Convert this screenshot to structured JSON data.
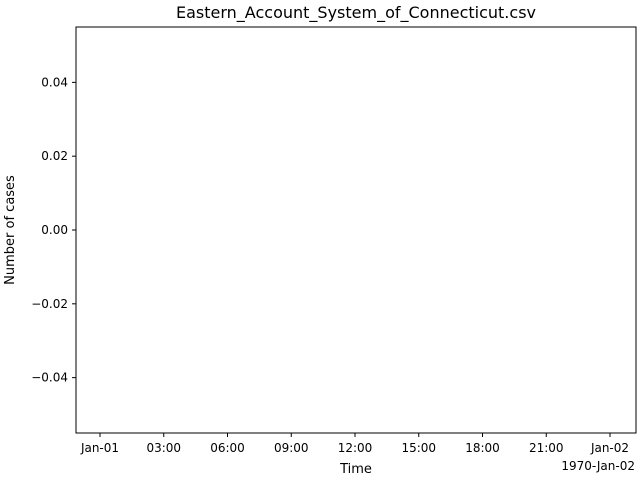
{
  "chart_data": {
    "type": "line",
    "title": "Eastern_Account_System_of_Connecticut.csv",
    "xlabel": "Time",
    "ylabel": "Number of cases",
    "x_offset_label": "1970-Jan-02",
    "x_ticks": [
      "Jan-01",
      "03:00",
      "06:00",
      "09:00",
      "12:00",
      "15:00",
      "18:00",
      "21:00",
      "Jan-02"
    ],
    "y_ticks": [
      0.04,
      0.02,
      0.0,
      -0.02,
      -0.04
    ],
    "y_tick_labels": [
      "0.04",
      "0.02",
      "0.00",
      "−0.02",
      "−0.04"
    ],
    "ylim": [
      -0.055,
      0.055
    ],
    "series": [],
    "grid": false,
    "legend": "none"
  }
}
